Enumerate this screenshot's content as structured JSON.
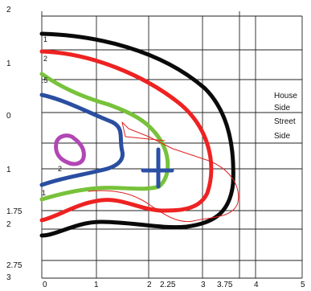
{
  "y_axis_labels": [
    {
      "text": "2"
    },
    {
      "text": "1"
    },
    {
      "text": "0"
    },
    {
      "text": "1"
    },
    {
      "text": "1.75"
    },
    {
      "text": "2"
    },
    {
      "text": "2.75"
    },
    {
      "text": "3"
    }
  ],
  "x_axis_labels": [
    "0",
    "1",
    "2",
    "2.25",
    "3",
    "3.75",
    "4",
    "5"
  ],
  "contour_labels": [
    {
      "text": "1",
      "color_name": "black"
    },
    {
      "text": "2",
      "color_name": "red"
    },
    {
      "text": ".5",
      "color_name": "green"
    },
    {
      "text": "2",
      "color_name": "purple"
    },
    {
      "text": "1",
      "color_name": "blue"
    }
  ],
  "side_labels": {
    "house": "House",
    "side1": "Side",
    "street": "Street",
    "side2": "Side"
  },
  "colors": {
    "black": "#0a0a0a",
    "red": "#ee2222",
    "green": "#77c23a",
    "blue": "#2a4ea0",
    "purple": "#b146b4",
    "thin_red": "#e02020",
    "cross": "#2c4fa6",
    "grid": "#222222"
  }
}
